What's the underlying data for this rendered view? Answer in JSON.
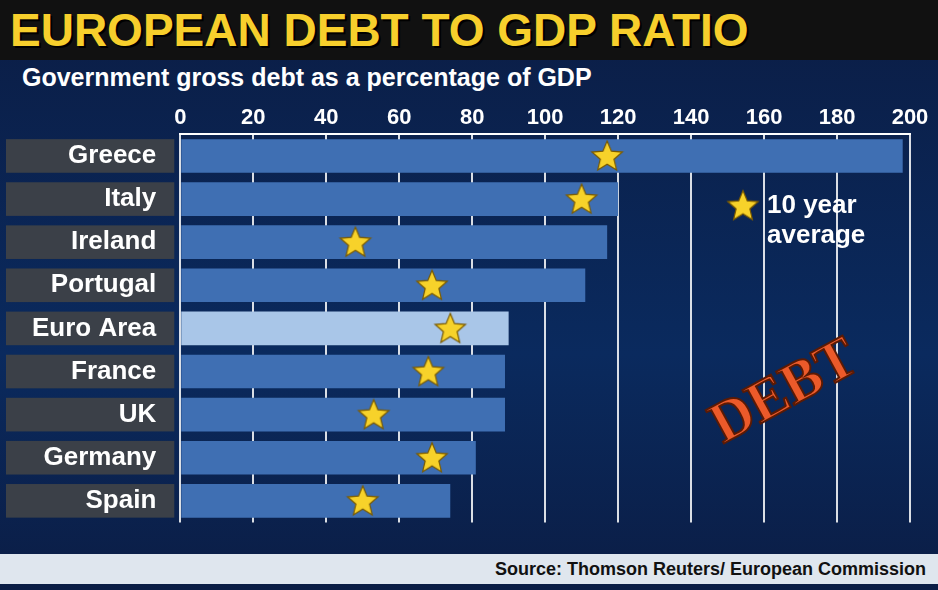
{
  "chart_data": {
    "type": "bar",
    "title": "EUROPEAN DEBT TO GDP RATIO",
    "subtitle": "Government gross debt as a percentage of GDP",
    "source": "Source: Thomson Reuters/ European Commission",
    "annotations": [
      "DEBT"
    ],
    "orientation": "horizontal",
    "grid": true,
    "legend": "right",
    "categories": [
      "Greece",
      "Italy",
      "Ireland",
      "Portugal",
      "Euro Area",
      "France",
      "UK",
      "Germany",
      "Spain"
    ],
    "series": [
      {
        "values": [
          198,
          120,
          117,
          111,
          90,
          89,
          89,
          81,
          74
        ],
        "colors": [
          "#3f6fb3",
          "#3f6fb3",
          "#3f6fb3",
          "#3f6fb3",
          "#a9c6e8",
          "#3f6fb3",
          "#3f6fb3",
          "#3f6fb3",
          "#3f6fb3"
        ]
      },
      {
        "name": "10 year average",
        "type": "scatter",
        "marker": "star",
        "color": "#f7d22a",
        "values": [
          117,
          110,
          48,
          69,
          74,
          68,
          53,
          69,
          50
        ]
      }
    ],
    "xlim": [
      0,
      200
    ],
    "xticks": [
      0,
      20,
      40,
      60,
      80,
      100,
      120,
      140,
      160,
      180,
      200
    ]
  }
}
